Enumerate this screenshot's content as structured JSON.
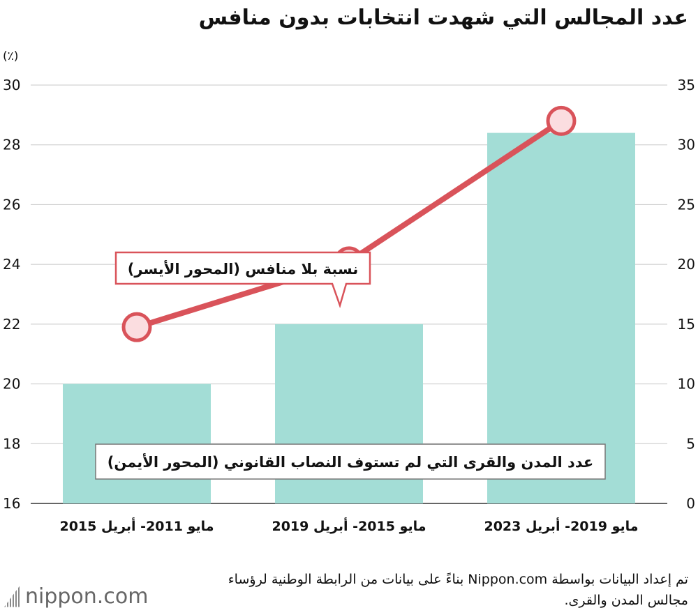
{
  "title": "عدد المجالس التي شهدت انتخابات بدون منافس",
  "chart_data": {
    "type": "bar",
    "unit_left": "(٪)",
    "categories": [
      "مايو 2011- أبريل 2015",
      "مايو 2015- أبريل 2019",
      "مايو 2019- أبريل 2023"
    ],
    "y_left": {
      "min": 16,
      "max": 30,
      "ticks": [
        16,
        18,
        20,
        22,
        24,
        26,
        28,
        30
      ]
    },
    "y_right": {
      "min": 0,
      "max": 35,
      "ticks": [
        0,
        5,
        10,
        15,
        20,
        25,
        30,
        35
      ]
    },
    "series": [
      {
        "name": "عدد المدن والقرى التي لم تستوف النصاب القانوني (المحور الأيمن)",
        "type": "bar",
        "axis": "right",
        "values": [
          10,
          15,
          31
        ],
        "color": "#a3ddd6"
      },
      {
        "name": "نسبة بلا منافس (المحور الأيسر)",
        "type": "line",
        "axis": "left",
        "values": [
          21.9,
          24.1,
          28.8
        ],
        "color": "#d9535a",
        "marker_fill": "#fbdde0"
      }
    ],
    "grid": true
  },
  "source": "تم إعداد البيانات بواسطة Nippon.com بناءً على بيانات من الرابطة الوطنية لرؤساء مجالس المدن والقرى.",
  "logo": "nippon.com"
}
